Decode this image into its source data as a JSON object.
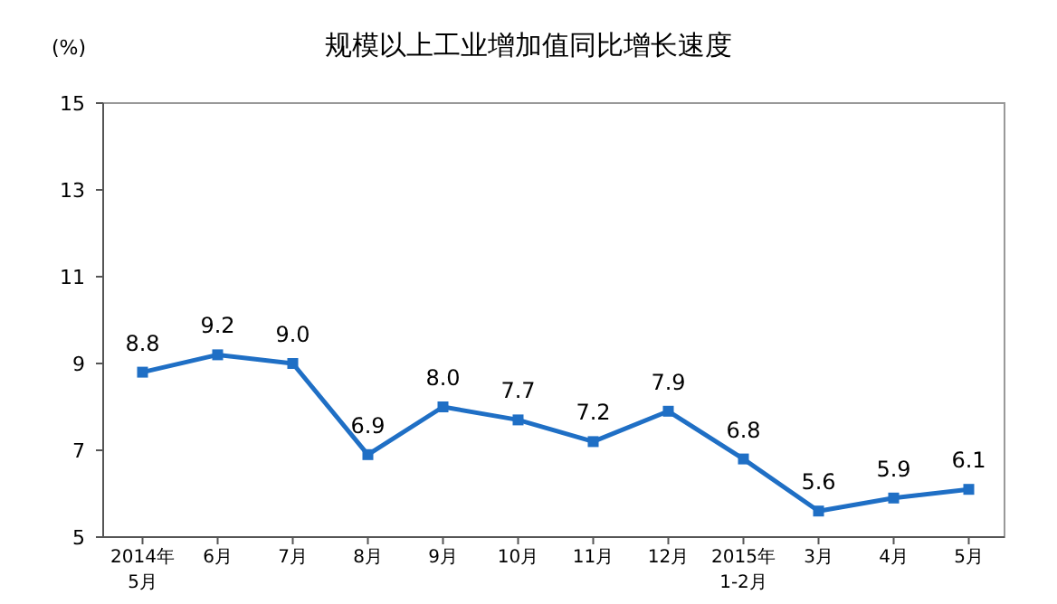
{
  "chart_data": {
    "type": "line",
    "title": "规模以上工业增加值同比增长速度",
    "ylabel": "(%)",
    "categories": [
      "2014年\n5月",
      "6月",
      "7月",
      "8月",
      "9月",
      "10月",
      "11月",
      "12月",
      "2015年\n1-2月",
      "3月",
      "4月",
      "5月"
    ],
    "series": [
      {
        "color": "#1f6fc5",
        "values": [
          8.8,
          9.2,
          9.0,
          6.9,
          8.0,
          7.7,
          7.2,
          7.9,
          6.8,
          5.6,
          5.9,
          6.1
        ],
        "value_labels": [
          "8.8",
          "9.2",
          "9.0",
          "6.9",
          "8.0",
          "7.7",
          "7.2",
          "7.9",
          "6.8",
          "5.6",
          "5.9",
          "6.1"
        ]
      }
    ],
    "ylim": [
      5,
      15
    ],
    "yticks": [
      5,
      7,
      9,
      11,
      13,
      15
    ],
    "grid": false,
    "marker": "square",
    "line_style": "solid"
  }
}
